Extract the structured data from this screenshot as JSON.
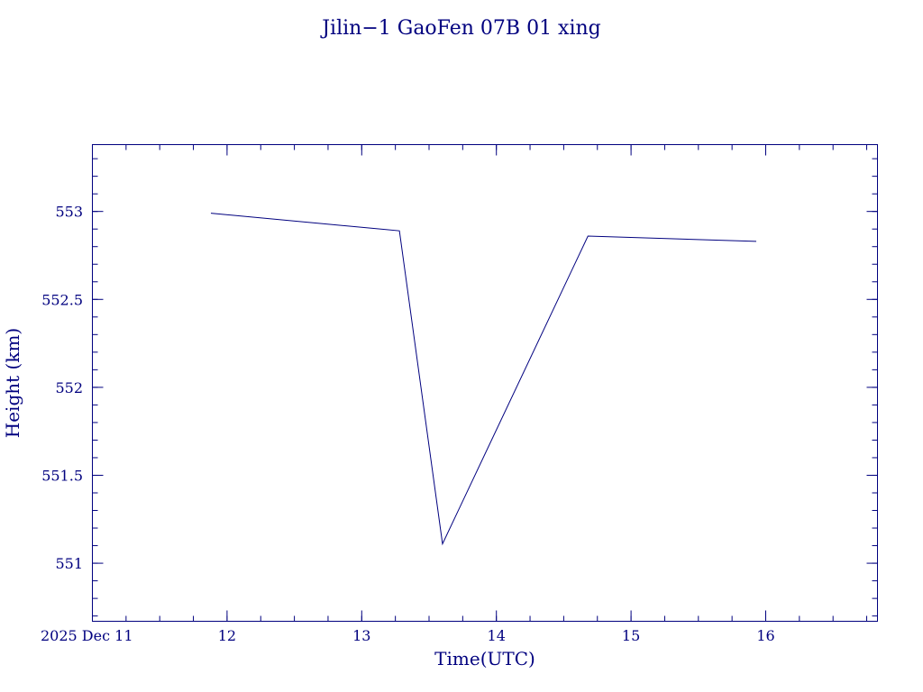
{
  "chart_data": {
    "type": "line",
    "title": "Jilin−1 GaoFen 07B 01 xing",
    "xlabel": "Time(UTC)",
    "ylabel": "Height (km)",
    "x_date_prefix": "2025 Dec 11",
    "x_unit": "hours (UTC)",
    "xlim": [
      11.0,
      16.83
    ],
    "ylim": [
      550.67,
      553.38
    ],
    "x_ticks": [
      12,
      13,
      14,
      15,
      16
    ],
    "x_tick_labels": [
      "12",
      "13",
      "14",
      "15",
      "16"
    ],
    "y_ticks": [
      551,
      551.5,
      552,
      552.5,
      553
    ],
    "y_tick_labels": [
      "551",
      "551.5",
      "552",
      "552.5",
      "553"
    ],
    "x_minor_step": 0.25,
    "y_minor_step": 0.1,
    "grid": false,
    "series": [
      {
        "x": [
          11.88,
          13.28,
          13.6,
          14.68,
          15.93
        ],
        "y": [
          552.99,
          552.89,
          551.11,
          552.86,
          552.83
        ]
      }
    ],
    "colors": {
      "ink": "#00007f",
      "background": "#ffffff"
    }
  }
}
